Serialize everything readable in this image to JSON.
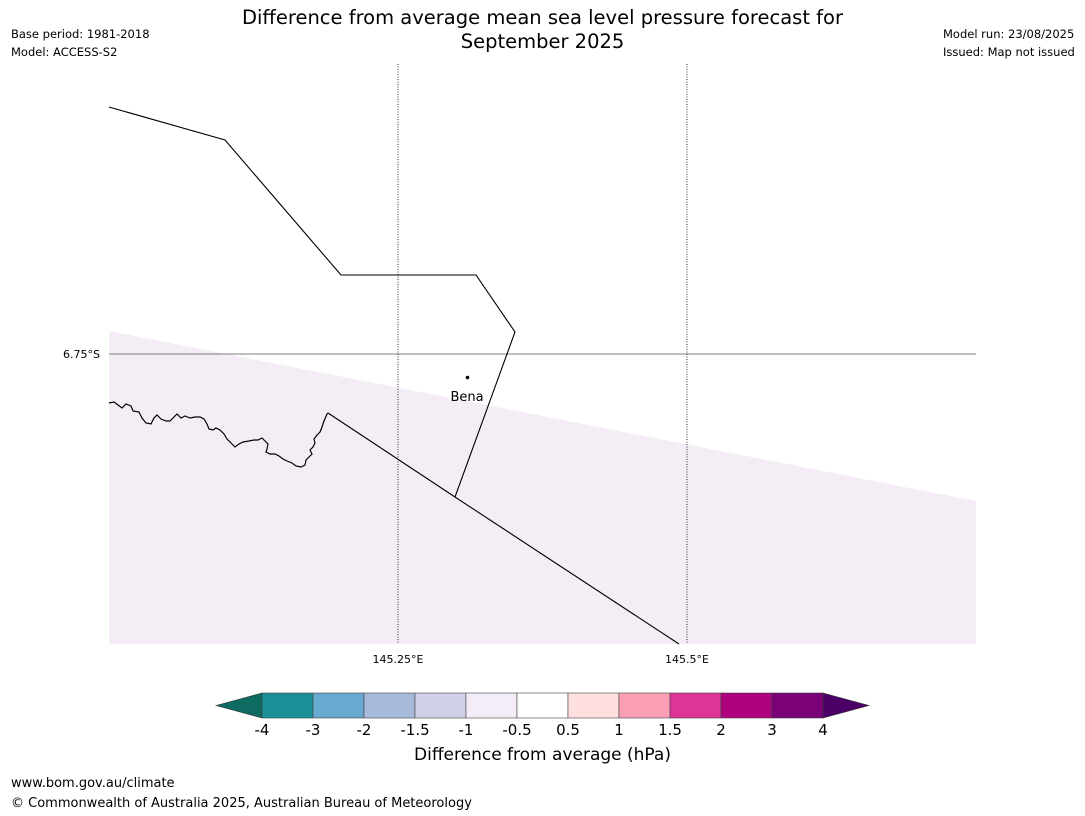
{
  "title_line1": "Difference from average mean sea level pressure forecast for",
  "title_line2": "September 2025",
  "meta": {
    "base_period": "Base period: 1981-2018",
    "model": "Model: ACCESS-S2",
    "model_run": "Model run: 23/08/2025",
    "issued": "Issued: Map not issued"
  },
  "map": {
    "lon_ticks": [
      "145.25°E",
      "145.5°E"
    ],
    "lat_ticks": [
      "6.75°S"
    ],
    "place": "Bena",
    "shading_color": "#f4edf6"
  },
  "colorbar": {
    "label": "Difference from average (hPa)",
    "tick_labels": [
      "-4",
      "-3",
      "-2",
      "-1.5",
      "-1",
      "-0.5",
      "0.5",
      "1",
      "1.5",
      "2",
      "3",
      "4"
    ],
    "under_color": "#0e6b61",
    "over_color": "#4b0067",
    "colors": [
      "#1b9098",
      "#67a9cf",
      "#a8badc",
      "#d0d1e6",
      "#f4ecf7",
      "#ffffff",
      "#fedede",
      "#fa9fb5",
      "#dd3497",
      "#ae017e",
      "#7a0177"
    ]
  },
  "footer": {
    "url": "www.bom.gov.au/climate",
    "copyright": "© Commonwealth of Australia 2025, Australian Bureau of Meteorology"
  }
}
